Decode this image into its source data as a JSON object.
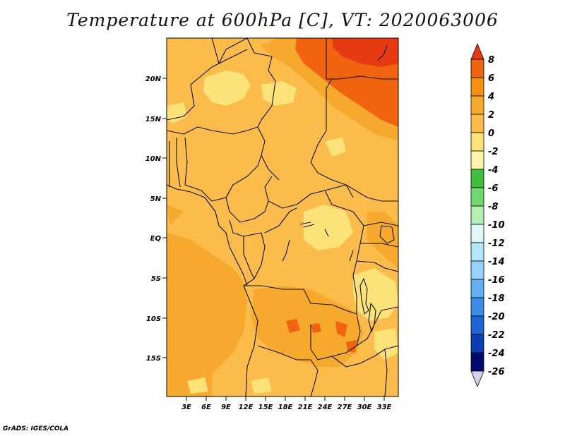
{
  "title": "Temperature at 600hPa [C], VT: 2020063006",
  "credit": "GrADS: IGES/COLA",
  "map": {
    "lat_labels": [
      "20N",
      "15N",
      "10N",
      "5N",
      "EQ",
      "5S",
      "10S",
      "15S"
    ],
    "lon_labels": [
      "3E",
      "6E",
      "9E",
      "12E",
      "15E",
      "18E",
      "21E",
      "24E",
      "27E",
      "30E",
      "33E"
    ],
    "base_fill": "#fbbc4b"
  },
  "colorbar": {
    "levels": [
      "8",
      "6",
      "4",
      "2",
      "0",
      "-2",
      "-4",
      "-6",
      "-8",
      "-10",
      "-12",
      "-14",
      "-16",
      "-18",
      "-20",
      "-22",
      "-24",
      "-26"
    ],
    "colors": [
      "#e63b12",
      "#f0640f",
      "#f78f0f",
      "#f7a92d",
      "#fbbc4b",
      "#fde27a",
      "#fff5a8",
      "#3fbf3f",
      "#72d872",
      "#b4f0b4",
      "#e0f8f8",
      "#b4e6fa",
      "#96d2fa",
      "#64aff0",
      "#3c8ce6",
      "#1e64d2",
      "#0a40b4",
      "#000a6e",
      "#d2d2f0"
    ]
  }
}
